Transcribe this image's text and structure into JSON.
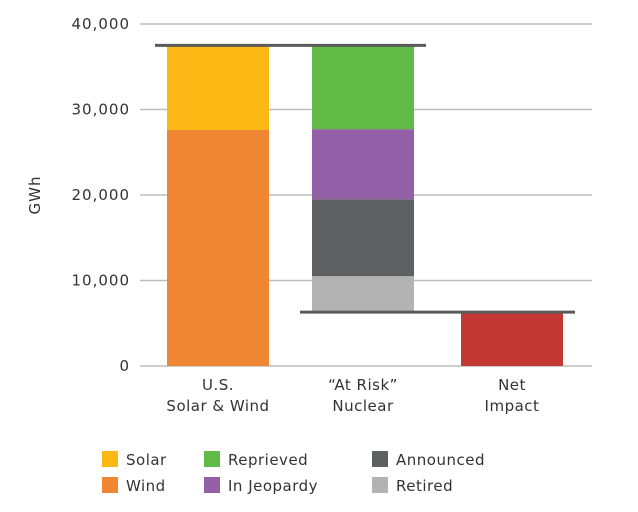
{
  "chart_data": {
    "type": "bar",
    "title": "",
    "xlabel": "",
    "ylabel": "GWh",
    "ylim": [
      0,
      40000
    ],
    "yticks": [
      0,
      10000,
      20000,
      30000,
      40000
    ],
    "ytick_labels": [
      "0",
      "10,000",
      "20,000",
      "30,000",
      "40,000"
    ],
    "grid": true,
    "categories": [
      {
        "line1": "U.S.",
        "line2": "Solar & Wind"
      },
      {
        "line1": "“At Risk”",
        "line2": "Nuclear"
      },
      {
        "line1": "Net",
        "line2": "Impact"
      }
    ],
    "segments": [
      {
        "category": 0,
        "name": "Wind",
        "base": 0,
        "value": 27600,
        "color": "#EE8634"
      },
      {
        "category": 0,
        "name": "Solar",
        "base": 27600,
        "value": 9900,
        "color": "#FCB815"
      },
      {
        "category": 1,
        "name": "Retired",
        "base": 6300,
        "value": 4200,
        "color": "#B3B3B3"
      },
      {
        "category": 1,
        "name": "Announced",
        "base": 10500,
        "value": 9000,
        "color": "#5F6062"
      },
      {
        "category": 1,
        "name": "In Jeopardy",
        "base": 19500,
        "value": 8200,
        "color": "#9360A8"
      },
      {
        "category": 1,
        "name": "Reprieved",
        "base": 27700,
        "value": 9800,
        "color": "#62BB47"
      },
      {
        "category": 2,
        "name": "Net Impact",
        "base": 0,
        "value": 6300,
        "color": "#C43833"
      }
    ],
    "reference_lines": [
      {
        "value": 37500,
        "from_category": 0,
        "to_category": 1
      },
      {
        "value": 6300,
        "from_category": 1,
        "to_category": 2
      }
    ],
    "legend": [
      {
        "label": "Solar",
        "color": "#FCB815"
      },
      {
        "label": "Wind",
        "color": "#EE8634"
      },
      {
        "label": "Reprieved",
        "color": "#62BB47"
      },
      {
        "label": "In Jeopardy",
        "color": "#9360A8"
      },
      {
        "label": "Announced",
        "color": "#5F6062"
      },
      {
        "label": "Retired",
        "color": "#B3B3B3"
      }
    ],
    "legend_placement": "bottom"
  }
}
